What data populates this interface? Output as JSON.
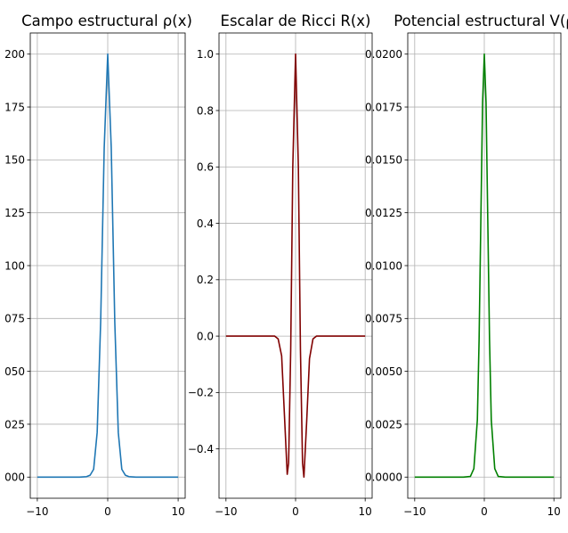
{
  "chart_data": [
    {
      "type": "line",
      "title": "Campo estructural ρ(x)",
      "xlabel": "",
      "ylabel": "",
      "xlim": [
        -11,
        11
      ],
      "ylim": [
        -0.01,
        0.21
      ],
      "xticks": [
        -10,
        0,
        10
      ],
      "xtick_labels": [
        "−10",
        "0",
        "10"
      ],
      "yticks": [
        0.0,
        0.025,
        0.05,
        0.075,
        0.1,
        0.125,
        0.15,
        0.175,
        0.2
      ],
      "ytick_labels": [
        "000",
        "025",
        "050",
        "075",
        "100",
        "125",
        "150",
        "175",
        "200"
      ],
      "grid": true,
      "color": "#1f77b4",
      "x": [
        -10,
        -4,
        -3,
        -2.5,
        -2,
        -1.5,
        -1,
        -0.5,
        0,
        0.5,
        1,
        1.5,
        2,
        2.5,
        3,
        4,
        10
      ],
      "series": [
        {
          "values": [
            0,
            0,
            0.0002,
            0.0009,
            0.0037,
            0.0211,
            0.0736,
            0.1558,
            0.2,
            0.1558,
            0.0736,
            0.0211,
            0.0037,
            0.0009,
            0.0002,
            0,
            0
          ]
        }
      ]
    },
    {
      "type": "line",
      "title": "Escalar de Ricci R(x)",
      "xlabel": "",
      "ylabel": "",
      "xlim": [
        -11,
        11
      ],
      "ylim": [
        -0.575,
        1.075
      ],
      "xticks": [
        -10,
        0,
        10
      ],
      "xtick_labels": [
        "−10",
        "0",
        "10"
      ],
      "yticks": [
        -0.4,
        -0.2,
        0.0,
        0.2,
        0.4,
        0.6,
        0.8,
        1.0
      ],
      "ytick_labels": [
        "−0.4",
        "−0.2",
        "0.0",
        "0.2",
        "0.4",
        "0.6",
        "0.8",
        "1.0"
      ],
      "grid": true,
      "color": "#800000",
      "x": [
        -10,
        -4,
        -3,
        -2.5,
        -2,
        -1.6,
        -1.2,
        -1,
        -0.7,
        -0.4,
        0,
        0.4,
        0.7,
        1,
        1.2,
        1.6,
        2,
        2.5,
        3,
        4,
        10
      ],
      "series": [
        {
          "values": [
            0,
            0,
            0,
            -0.01,
            -0.07,
            -0.28,
            -0.49,
            -0.45,
            -0.05,
            0.6,
            1.0,
            0.6,
            -0.05,
            -0.45,
            -0.5,
            -0.3,
            -0.08,
            -0.01,
            0,
            0,
            0
          ]
        }
      ]
    },
    {
      "type": "line",
      "title": "Potencial estructural V(ρ",
      "xlabel": "",
      "ylabel": "",
      "xlim": [
        -11,
        11
      ],
      "ylim": [
        -0.001,
        0.021
      ],
      "xticks": [
        -10,
        0,
        10
      ],
      "xtick_labels": [
        "−10",
        "0",
        "10"
      ],
      "yticks": [
        0.0,
        0.0025,
        0.005,
        0.0075,
        0.01,
        0.0125,
        0.015,
        0.0175,
        0.02
      ],
      "ytick_labels": [
        "0.0000",
        "0.0025",
        "0.0050",
        "0.0075",
        "0.0100",
        "0.0125",
        "0.0150",
        "0.0175",
        "0.0200"
      ],
      "grid": true,
      "color": "#008000",
      "x": [
        -10,
        -3,
        -2,
        -1.5,
        -1,
        -0.75,
        -0.5,
        -0.25,
        0,
        0.25,
        0.5,
        0.75,
        1,
        1.5,
        2,
        3,
        10
      ],
      "series": [
        {
          "values": [
            0,
            0,
            3e-05,
            0.0004,
            0.0027,
            0.0065,
            0.0121,
            0.0177,
            0.02,
            0.0177,
            0.0121,
            0.0065,
            0.0027,
            0.0004,
            3e-05,
            0,
            0
          ]
        }
      ]
    }
  ]
}
